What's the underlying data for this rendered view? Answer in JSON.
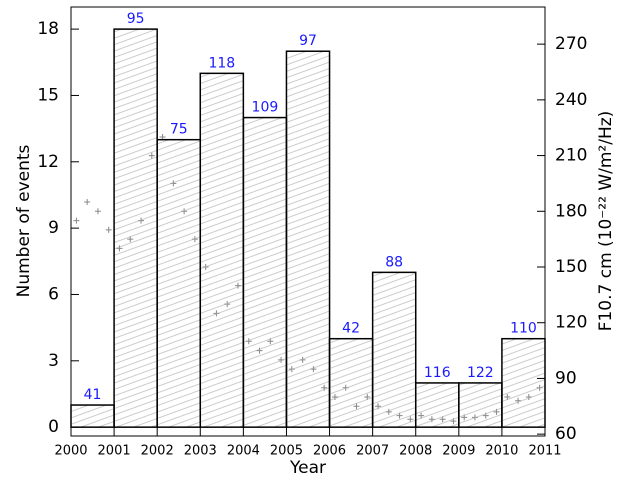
{
  "chart_data": {
    "type": "histogram",
    "xlabel": "Year",
    "ylabel": "Number of events",
    "y2label": "F10.7 cm (10⁻²² W/m²/Hz)",
    "bins": [
      2000,
      2001,
      2002,
      2003,
      2004,
      2005,
      2006,
      2007,
      2008,
      2009,
      2010,
      2011
    ],
    "counts": [
      1,
      18,
      13,
      16,
      14,
      17,
      4,
      7,
      2,
      2,
      4
    ],
    "bar_labels": [
      41,
      95,
      75,
      118,
      109,
      97,
      42,
      88,
      116,
      122,
      110
    ],
    "color": "#000000",
    "label_color": "#1a1aff",
    "xlim": [
      2000,
      2011
    ],
    "xticks": [
      2000,
      2001,
      2002,
      2003,
      2004,
      2005,
      2006,
      2007,
      2008,
      2009,
      2010,
      2011
    ],
    "ylim": [
      -0.4,
      19
    ],
    "yticks": [
      0,
      3,
      6,
      9,
      12,
      15,
      18
    ],
    "y2lim": [
      59,
      290
    ],
    "y2ticks": [
      60,
      90,
      120,
      150,
      180,
      210,
      240,
      270
    ],
    "series": [
      {
        "axis": "y2",
        "color": "#555555",
        "x": [
          2000.125,
          2000.375,
          2000.625,
          2000.875,
          2001.125,
          2001.375,
          2001.625,
          2001.875,
          2002.125,
          2002.375,
          2002.625,
          2002.875,
          2003.125,
          2003.375,
          2003.625,
          2003.875,
          2004.125,
          2004.375,
          2004.625,
          2004.875,
          2005.125,
          2005.375,
          2005.625,
          2005.875,
          2006.125,
          2006.375,
          2006.625,
          2006.875,
          2007.125,
          2007.375,
          2007.625,
          2007.875,
          2008.125,
          2008.375,
          2008.625,
          2008.875,
          2009.125,
          2009.375,
          2009.625,
          2009.875,
          2010.125,
          2010.375,
          2010.625,
          2010.875
        ],
        "values": [
          175,
          185,
          180,
          170,
          160,
          165,
          175,
          210,
          220,
          195,
          180,
          165,
          150,
          125,
          130,
          140,
          110,
          105,
          110,
          100,
          95,
          100,
          95,
          85,
          80,
          85,
          75,
          80,
          75,
          72,
          70,
          68,
          70,
          68,
          68,
          67,
          69,
          69,
          70,
          72,
          80,
          78,
          80,
          85
        ]
      }
    ]
  }
}
